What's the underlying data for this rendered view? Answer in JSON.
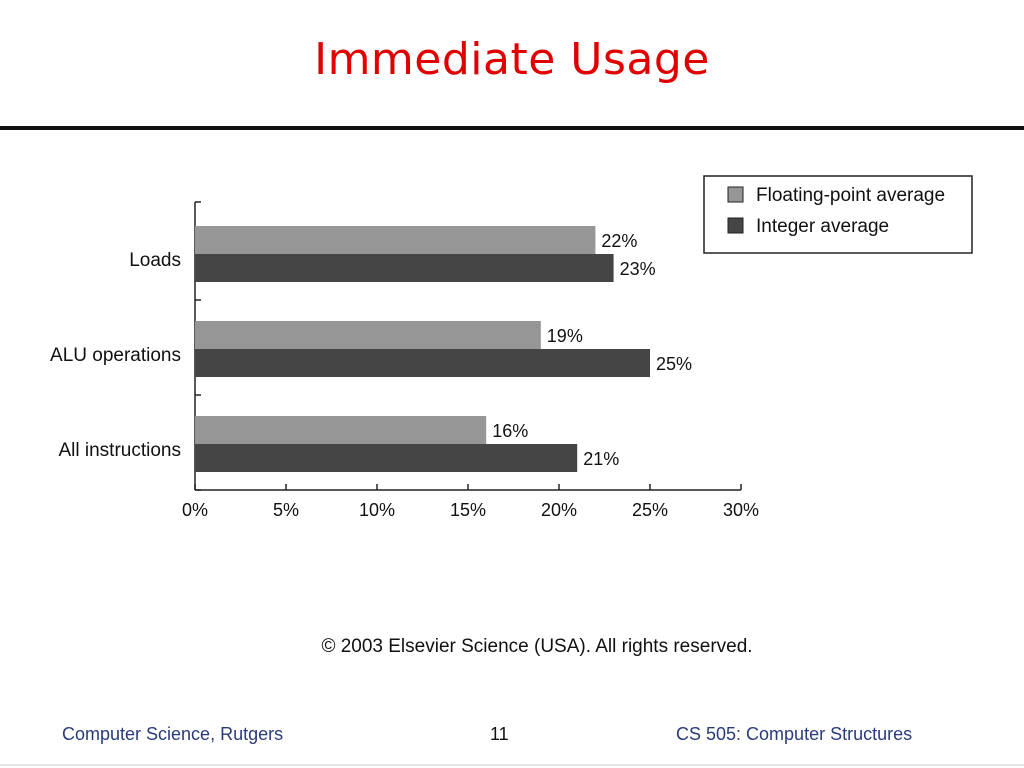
{
  "slide": {
    "title": "Immediate Usage",
    "copyright": "© 2003 Elsevier Science (USA). All rights reserved.",
    "footer_left": "Computer Science, Rutgers",
    "footer_center": "11",
    "footer_right": "CS 505: Computer Structures"
  },
  "chart_data": {
    "type": "bar",
    "orientation": "horizontal",
    "categories": [
      "Loads",
      "ALU operations",
      "All instructions"
    ],
    "series": [
      {
        "name": "Floating-point average",
        "values": [
          22,
          19,
          16
        ],
        "labels": [
          "22%",
          "19%",
          "16%"
        ],
        "color": "#969696"
      },
      {
        "name": "Integer average",
        "values": [
          23,
          25,
          21
        ],
        "labels": [
          "23%",
          "25%",
          "21%"
        ],
        "color": "#454545"
      }
    ],
    "xlim": [
      0,
      30
    ],
    "xticks": [
      0,
      5,
      10,
      15,
      20,
      25,
      30
    ],
    "xtick_labels": [
      "0%",
      "5%",
      "10%",
      "15%",
      "20%",
      "25%",
      "30%"
    ],
    "title": "",
    "xlabel": "",
    "ylabel": "",
    "grid": false,
    "legend_position": "top-right"
  }
}
